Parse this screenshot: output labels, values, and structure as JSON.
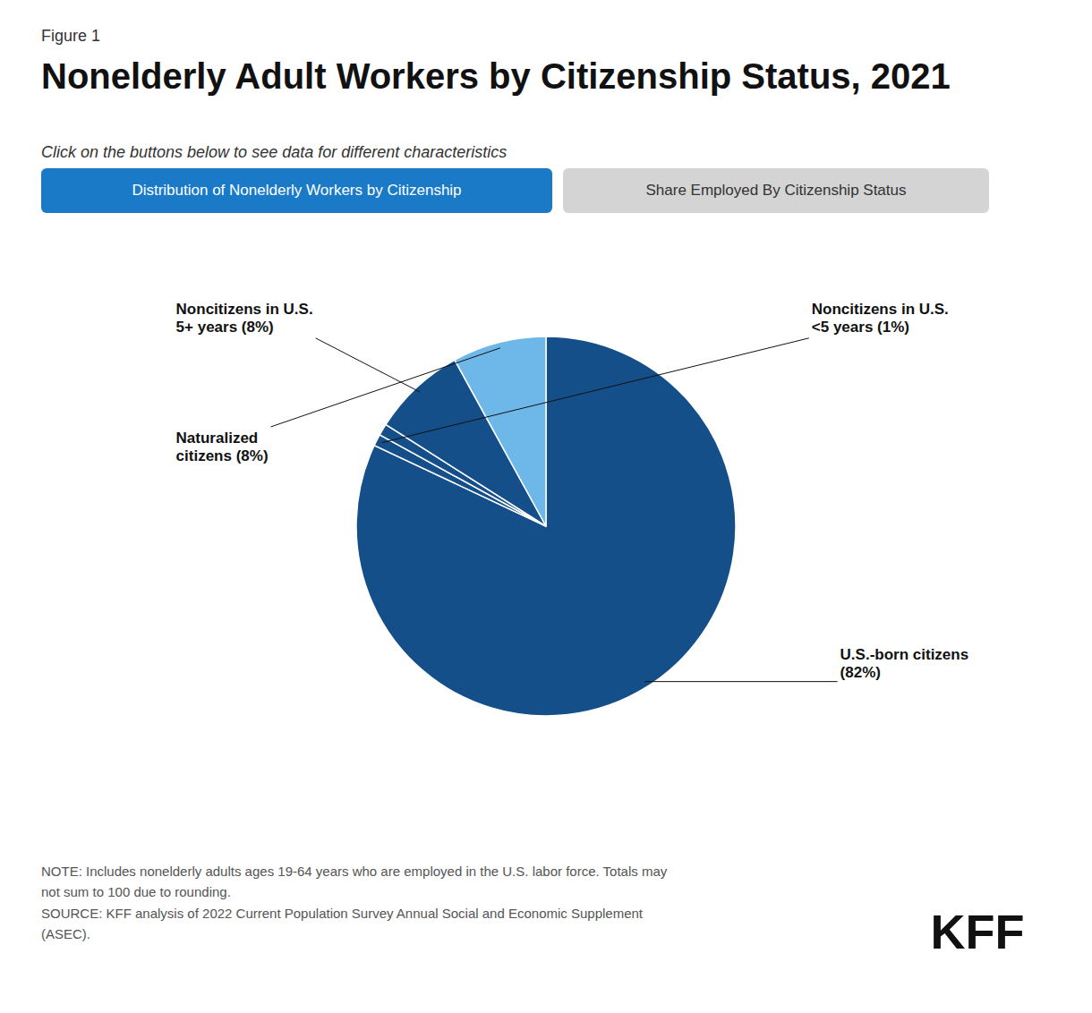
{
  "chart_data": {
    "type": "pie",
    "figure_label": "Figure 1",
    "title": "Nonelderly Adult Workers by Citizenship Status, 2021",
    "subtitle": "Click on the buttons below to see data for different characteristics",
    "buttons": [
      {
        "text": "Distribution of Nonelderly Workers by Citizenship",
        "color": "#1a7ac7",
        "text_color": "#ffffff"
      },
      {
        "text": "Share Employed By Citizenship Status",
        "color": "#d4d4d4",
        "text_color": "#333333"
      }
    ],
    "categories": [
      "U.S.-born citizens\n(82%)",
      "Noncitizens in U.S.\n<5 years (1%)",
      null,
      "Noncitizens in U.S.\n5+ years (8%)",
      "Naturalized\ncitizens (8%)"
    ],
    "values": [
      82,
      1,
      1,
      8,
      8
    ],
    "colors": [
      "#154f8a",
      "#154f8a",
      "#154f8a",
      "#154f8a",
      "#6db8e8"
    ],
    "note": "NOTE: Includes nonelderly adults ages 19-64 years who are employed in the U.S. labor force. Totals may\nnot sum to 100 due to rounding.\nSOURCE: KFF analysis of 2022 Current Population Survey Annual Social and Economic Supplement\n(ASEC).",
    "logo": "KFF"
  }
}
